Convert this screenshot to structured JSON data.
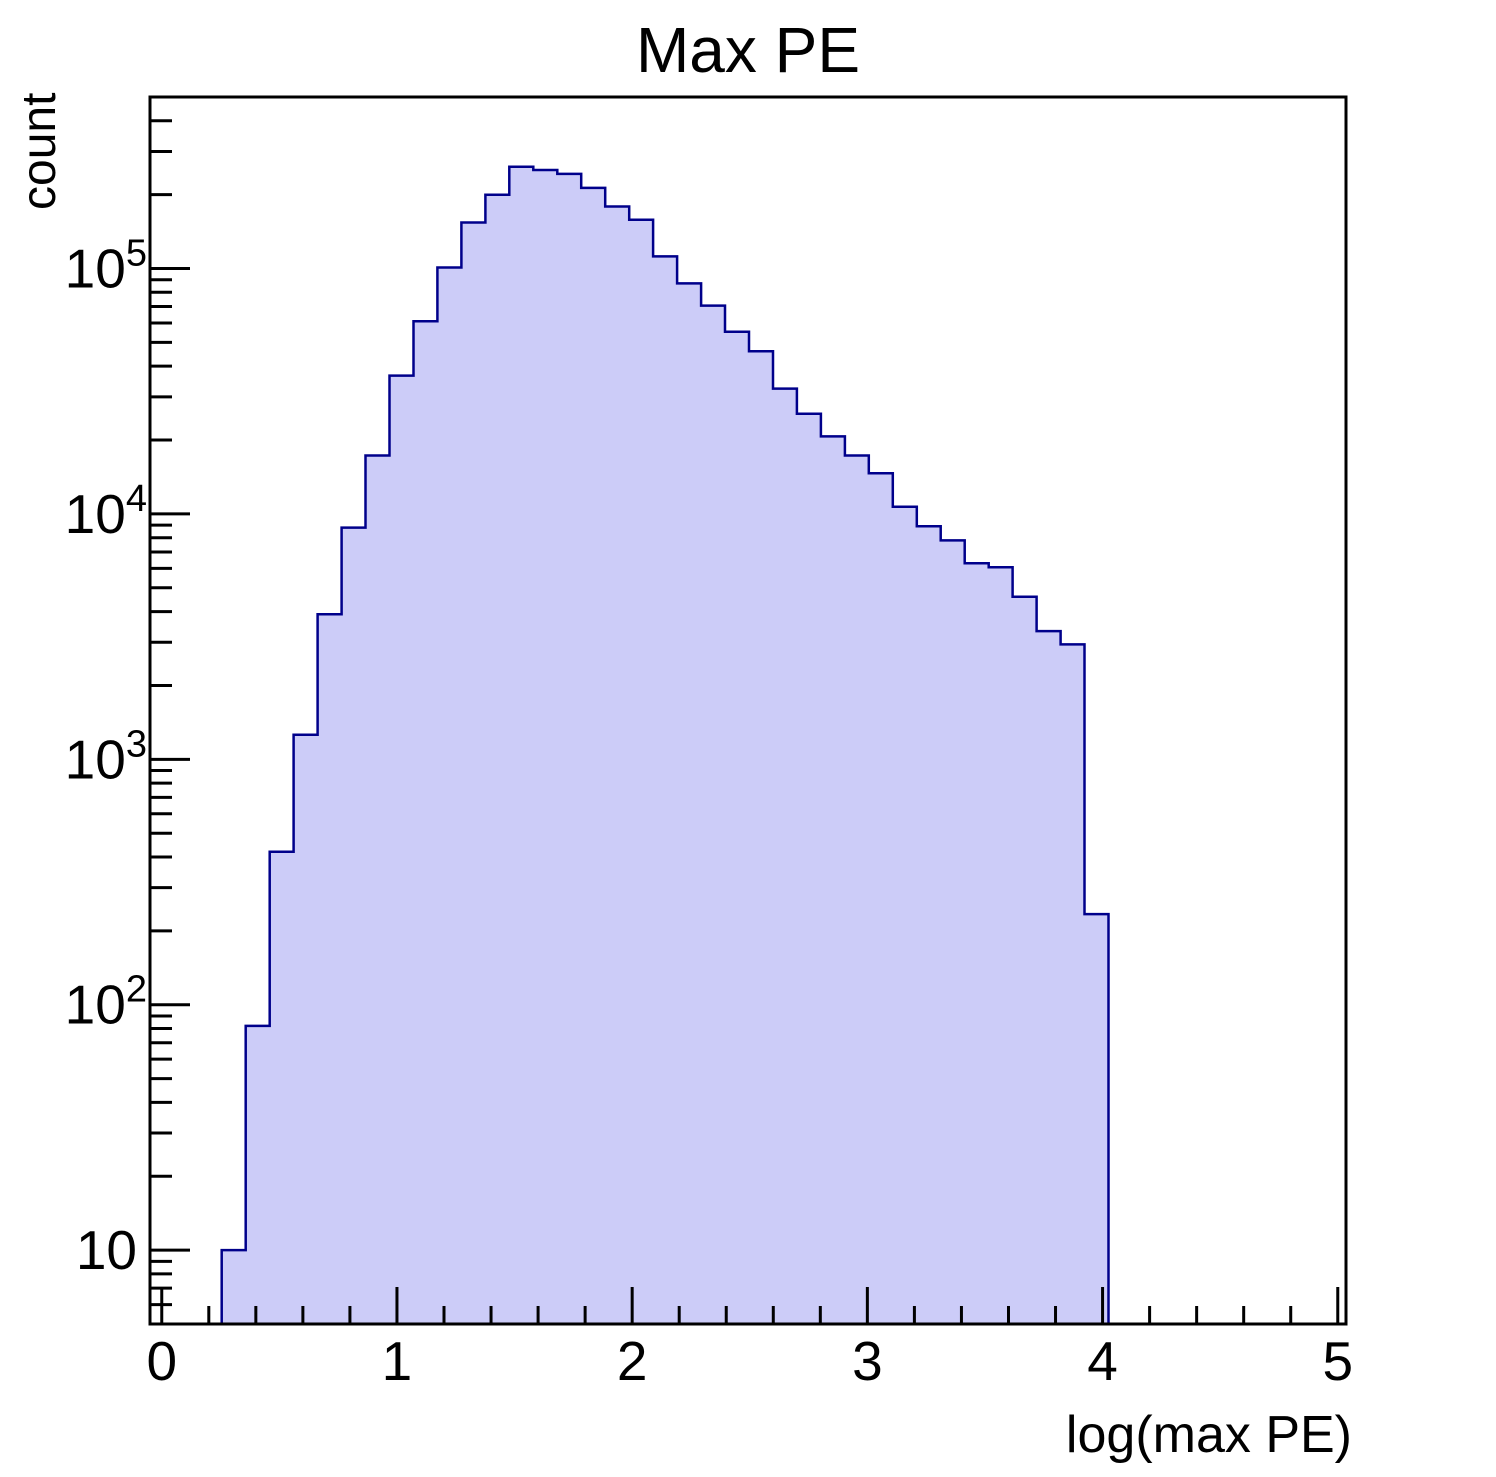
{
  "chart_data": {
    "type": "bar",
    "subtype": "histogram-step-filled",
    "title": "Max PE",
    "xlabel": "log(max PE)",
    "ylabel": "count",
    "x_scale": "linear",
    "y_scale": "log",
    "xlim": [
      -0.05,
      5.035
    ],
    "ylim": [
      5,
      500000
    ],
    "x_major_ticks": [
      0,
      1,
      2,
      3,
      4,
      5
    ],
    "x_minor_step": 0.2,
    "y_major_ticks": [
      10,
      100,
      1000,
      10000,
      100000
    ],
    "y_tick_labels": [
      "10",
      "10^2",
      "10^3",
      "10^4",
      "10^5"
    ],
    "grid": "off",
    "legend": "none",
    "bins": {
      "start": 0.255,
      "width": 0.1019,
      "count": 37,
      "end": 4.025
    },
    "values": [
      10,
      82,
      420,
      1260,
      3900,
      8800,
      17300,
      36600,
      61000,
      101000,
      154000,
      200000,
      260000,
      252000,
      243000,
      213000,
      179000,
      158000,
      112000,
      87000,
      70600,
      55300,
      46000,
      32400,
      25600,
      20700,
      17300,
      14650,
      10700,
      8900,
      7800,
      6300,
      6060,
      4600,
      3330,
      2940,
      234
    ],
    "colors": {
      "fill": "#ccccf8",
      "edge": "#00008b",
      "axis": "#000000",
      "background": "#ffffff"
    }
  }
}
